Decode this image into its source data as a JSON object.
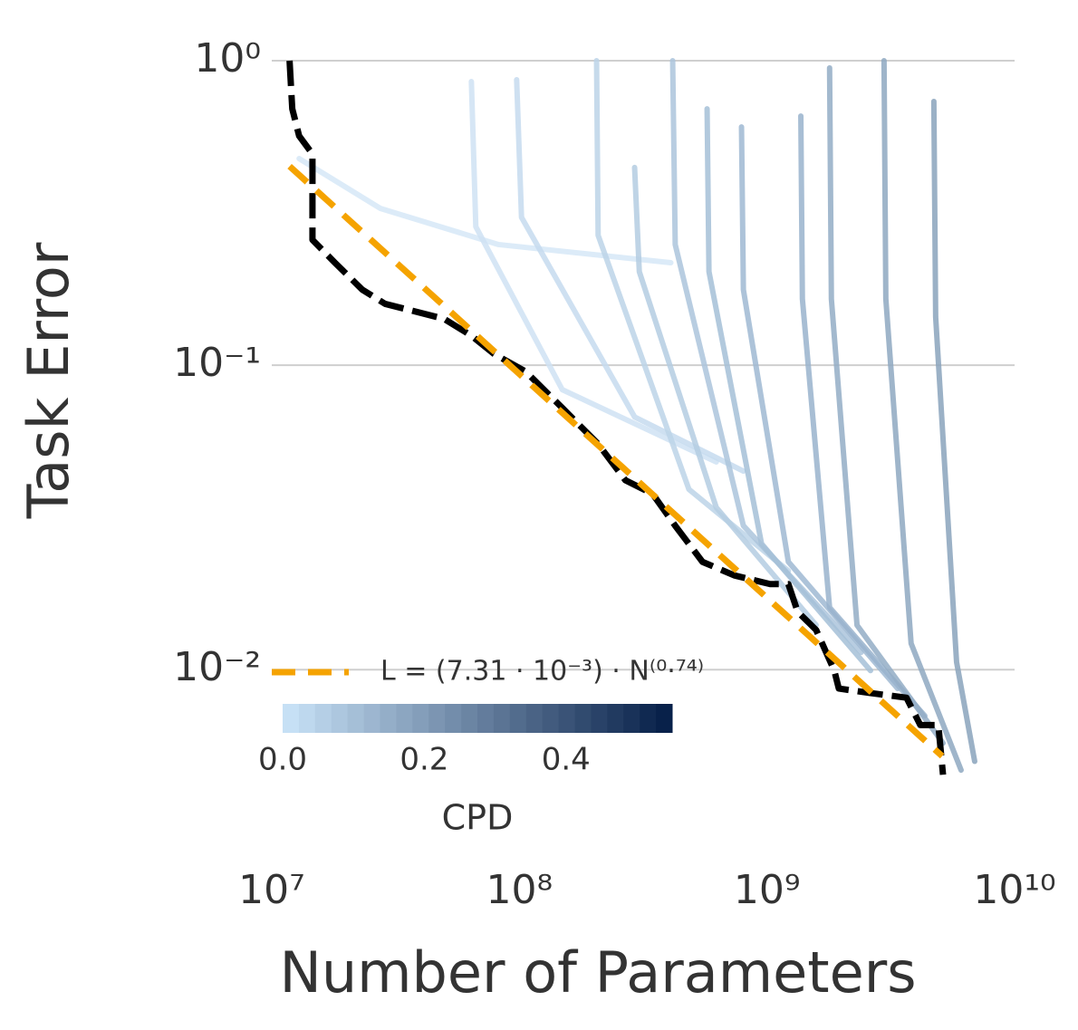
{
  "chart_data": {
    "type": "line",
    "xlabel": "Number of Parameters",
    "ylabel": "Task Error",
    "log_x": true,
    "log_y": true,
    "grid": "y",
    "xlim": [
      10000000,
      10000000000
    ],
    "ylim": [
      0.004,
      1
    ],
    "xticks": [
      {
        "value": 10000000,
        "label": "10⁷"
      },
      {
        "value": 100000000,
        "label": "10⁸"
      },
      {
        "value": 1000000000,
        "label": "10⁹"
      },
      {
        "value": 10000000000,
        "label": "10¹⁰"
      }
    ],
    "yticks": [
      {
        "value": 1,
        "label": "10⁰"
      },
      {
        "value": 0.1,
        "label": "10⁻¹"
      },
      {
        "value": 0.01,
        "label": "10⁻²"
      }
    ],
    "series": [
      {
        "color": "#d6e8f7",
        "x": [
          12900000,
          27500000,
          82400000,
          409000000
        ],
        "values": [
          0.477,
          0.327,
          0.249,
          0.217
        ]
      },
      {
        "color": "#cfe2f3",
        "x": [
          64000000,
          66700000,
          149000000,
          624000000
        ],
        "values": [
          0.854,
          0.285,
          0.0831,
          0.0481
        ]
      },
      {
        "color": "#c6dbee",
        "x": [
          97500000,
          102000000,
          292000000,
          803000000
        ],
        "values": [
          0.866,
          0.306,
          0.0676,
          0.0449
        ]
      },
      {
        "color": "#bcd3e8",
        "x": [
          205000000,
          208000000,
          484000000,
          1220000000
        ],
        "values": [
          1,
          0.267,
          0.0391,
          0.0211
        ]
      },
      {
        "color": "#b4cce2",
        "x": [
          292000000,
          305000000,
          624000000,
          1580000000
        ],
        "values": [
          0.446,
          0.203,
          0.0341,
          0.014
        ]
      },
      {
        "color": "#abc4dc",
        "x": [
          416000000,
          426000000,
          803000000,
          2400000000
        ],
        "values": [
          1,
          0.249,
          0.0297,
          0.0114
        ]
      },
      {
        "color": "#a5bfd7",
        "x": [
          573000000,
          583000000,
          951000000,
          2620000000
        ],
        "values": [
          0.695,
          0.203,
          0.0259,
          0.00993
        ]
      },
      {
        "color": "#9fb9d2",
        "x": [
          789000000,
          803000000,
          1220000000,
          3370000000
        ],
        "values": [
          0.606,
          0.177,
          0.0226,
          0.00867
        ]
      },
      {
        "color": "#99b3cc",
        "x": [
          1370000000,
          1390000000,
          1790000000,
          4340000000
        ],
        "values": [
          0.658,
          0.165,
          0.016,
          0.00705
        ]
      },
      {
        "color": "#93adc6",
        "x": [
          1790000000,
          1820000000,
          2310000000,
          5140000000
        ],
        "values": [
          0.947,
          0.165,
          0.014,
          0.00574
        ]
      },
      {
        "color": "#8ea8c1",
        "x": [
          2970000000,
          3020000000,
          3820000000,
          6080000000
        ],
        "values": [
          1,
          0.165,
          0.0122,
          0.00468
        ]
      },
      {
        "color": "#89a3bc",
        "x": [
          4720000000,
          4800000000,
          5830000000,
          6900000000
        ],
        "values": [
          0.735,
          0.144,
          0.0106,
          0.005
        ]
      },
      {
        "color": "#000000",
        "dashed": true,
        "x": [
          11800000,
          12100000,
          12900000,
          14600000,
          14600000,
          18000000,
          23200000,
          28700000,
          49600000,
          64000000,
          78900000,
          106000000,
          149000000,
          208000000,
          268000000,
          345000000,
          426000000,
          549000000,
          738000000,
          1030000000,
          1220000000,
          1330000000,
          1580000000,
          1870000000,
          1950000000,
          2620000000,
          3660000000,
          4160000000,
          4920000000,
          5140000000
        ],
        "values": [
          1,
          0.695,
          0.566,
          0.494,
          0.258,
          0.217,
          0.177,
          0.159,
          0.142,
          0.125,
          0.109,
          0.0953,
          0.0724,
          0.0551,
          0.0419,
          0.0378,
          0.0297,
          0.0226,
          0.0204,
          0.0191,
          0.0191,
          0.0155,
          0.0135,
          0.00993,
          0.00867,
          0.00838,
          0.00809,
          0.00658,
          0.00658,
          0.00452
        ]
      },
      {
        "name": "L = (7.31 · 10⁻³) · N⁽⁰·⁷⁴⁾",
        "color": "#f5a300",
        "dashed": true,
        "x": [
          11800000,
          5100000000
        ],
        "values": [
          0.45,
          0.0052
        ]
      }
    ],
    "colorbar": {
      "label": "CPD",
      "lim": [
        0,
        0.55
      ],
      "colors": [
        "#c6e0f5",
        "#08214a"
      ],
      "ticks": [
        {
          "value": 0,
          "label": "0.0"
        },
        0.2,
        0.4
      ]
    }
  }
}
